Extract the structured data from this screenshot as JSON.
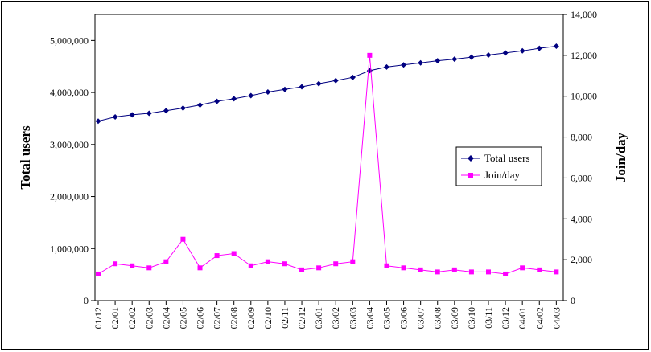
{
  "chart_data": {
    "type": "line",
    "title": "",
    "ylabel_left": "Total users",
    "ylabel_right": "Join/day",
    "xlabel": "",
    "ylim_left": [
      0,
      5500000
    ],
    "ylim_right": [
      0,
      14000
    ],
    "yticks_left": [
      "0",
      "1,000,000",
      "2,000,000",
      "3,000,000",
      "4,000,000",
      "5,000,000"
    ],
    "yticks_left_values": [
      0,
      1000000,
      2000000,
      3000000,
      4000000,
      5000000
    ],
    "yticks_right": [
      "0",
      "2,000",
      "4,000",
      "6,000",
      "8,000",
      "10,000",
      "12,000",
      "14,000"
    ],
    "yticks_right_values": [
      0,
      2000,
      4000,
      6000,
      8000,
      10000,
      12000,
      14000
    ],
    "categories": [
      "01/12",
      "02/01",
      "02/02",
      "02/03",
      "02/04",
      "02/05",
      "02/06",
      "02/07",
      "02/08",
      "02/09",
      "02/10",
      "02/11",
      "02/12",
      "03/01",
      "03/02",
      "03/03",
      "03/04",
      "03/05",
      "03/06",
      "03/07",
      "03/08",
      "03/09",
      "03/10",
      "03/11",
      "03/12",
      "04/01",
      "04/02",
      "04/03"
    ],
    "series": [
      {
        "name": "Total users",
        "axis": "left",
        "color": "#000080",
        "marker": "diamond",
        "values": [
          3450000,
          3530000,
          3570000,
          3600000,
          3650000,
          3700000,
          3760000,
          3830000,
          3880000,
          3940000,
          4010000,
          4060000,
          4110000,
          4170000,
          4230000,
          4290000,
          4420000,
          4490000,
          4530000,
          4570000,
          4610000,
          4640000,
          4680000,
          4720000,
          4760000,
          4800000,
          4850000,
          4890000
        ]
      },
      {
        "name": "Join/day",
        "axis": "right",
        "color": "#ff00ff",
        "marker": "square",
        "values": [
          1300,
          1800,
          1700,
          1600,
          1900,
          3000,
          1600,
          2200,
          2300,
          1700,
          1900,
          1800,
          1500,
          1600,
          1800,
          1900,
          12000,
          1700,
          1600,
          1500,
          1400,
          1500,
          1400,
          1400,
          1300,
          1600,
          1500,
          1400
        ]
      }
    ],
    "legend": [
      "Total users",
      "Join/day"
    ],
    "legend_position": "right-middle",
    "grid": false
  }
}
